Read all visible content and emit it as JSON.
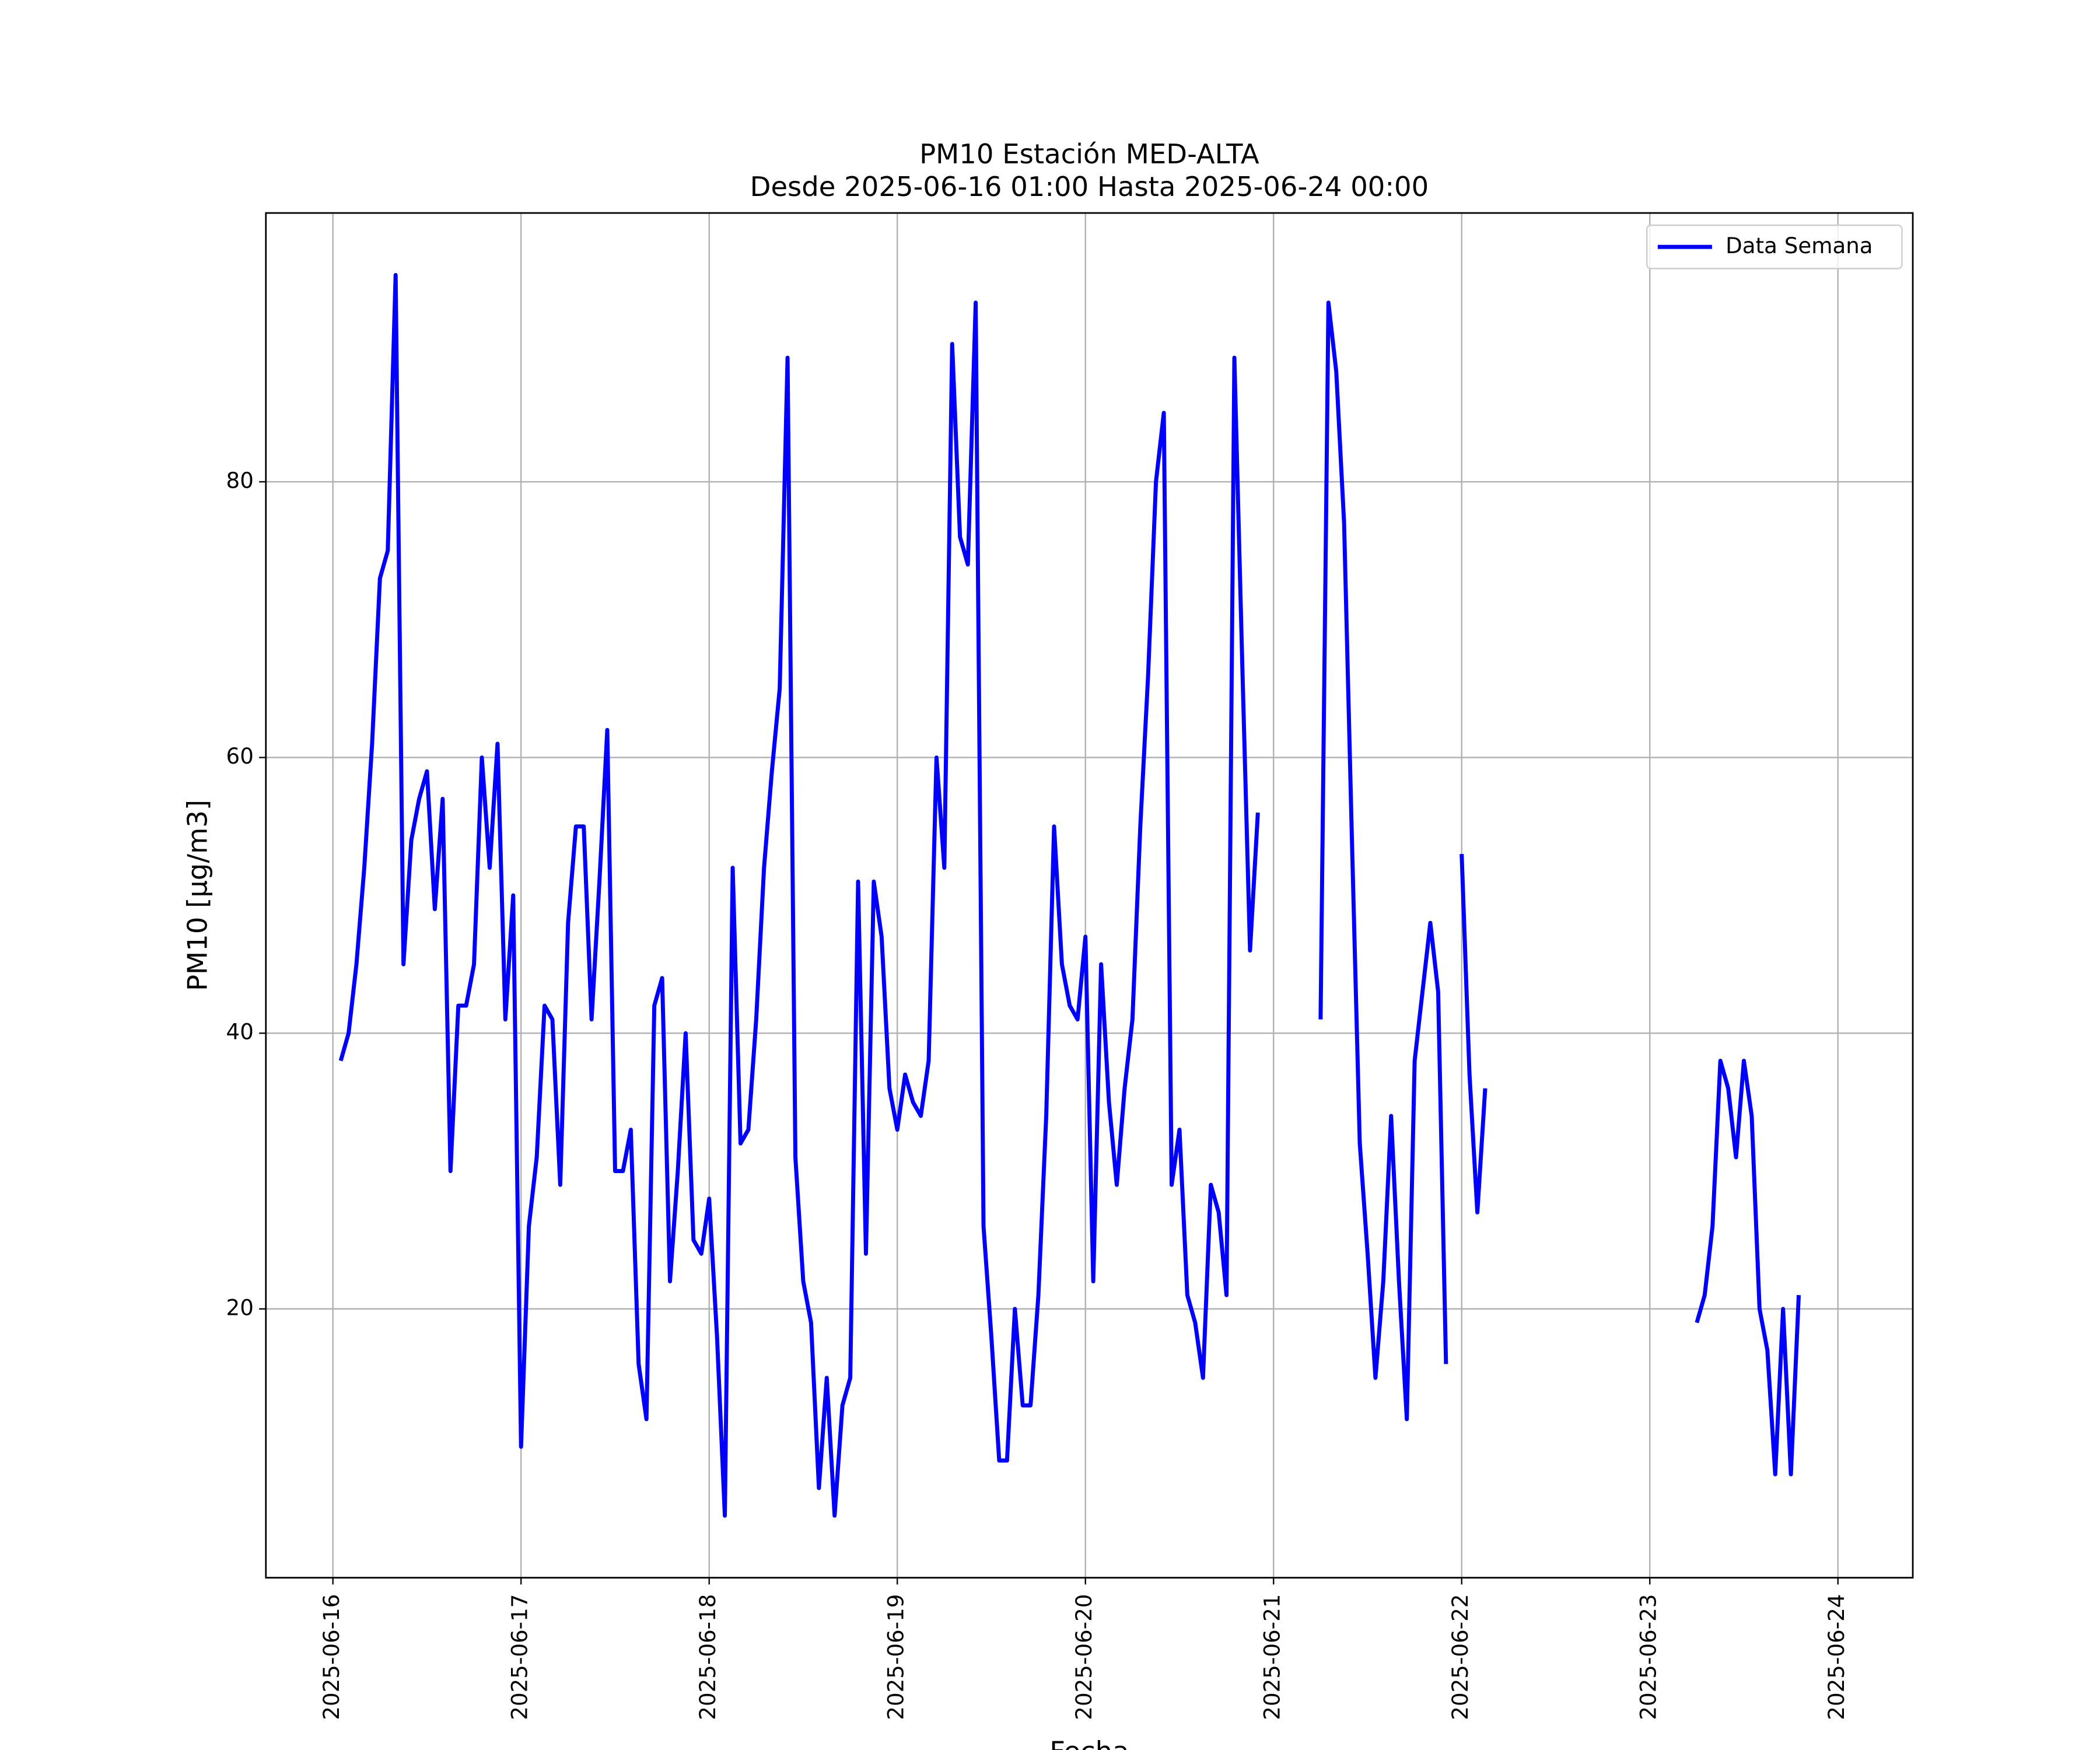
{
  "chart_data": {
    "type": "line",
    "title": "PM10 Estación MED-ALTA",
    "subtitle": "Desde 2025-06-16 01:00 Hasta 2025-06-24 00:00",
    "xlabel": "Fecha",
    "ylabel": "PM10 [μg/m3]",
    "x": [
      "2025-06-16 01:00",
      "2025-06-16 02:00",
      "2025-06-16 03:00",
      "2025-06-16 04:00",
      "2025-06-16 05:00",
      "2025-06-16 06:00",
      "2025-06-16 07:00",
      "2025-06-16 08:00",
      "2025-06-16 09:00",
      "2025-06-16 10:00",
      "2025-06-16 11:00",
      "2025-06-16 12:00",
      "2025-06-16 13:00",
      "2025-06-16 14:00",
      "2025-06-16 15:00",
      "2025-06-16 16:00",
      "2025-06-16 17:00",
      "2025-06-16 18:00",
      "2025-06-16 19:00",
      "2025-06-16 20:00",
      "2025-06-16 21:00",
      "2025-06-16 22:00",
      "2025-06-16 23:00",
      "2025-06-17 00:00",
      "2025-06-17 01:00",
      "2025-06-17 02:00",
      "2025-06-17 03:00",
      "2025-06-17 04:00",
      "2025-06-17 05:00",
      "2025-06-17 06:00",
      "2025-06-17 07:00",
      "2025-06-17 08:00",
      "2025-06-17 09:00",
      "2025-06-17 10:00",
      "2025-06-17 11:00",
      "2025-06-17 12:00",
      "2025-06-17 13:00",
      "2025-06-17 14:00",
      "2025-06-17 15:00",
      "2025-06-17 16:00",
      "2025-06-17 17:00",
      "2025-06-17 18:00",
      "2025-06-17 19:00",
      "2025-06-17 20:00",
      "2025-06-17 21:00",
      "2025-06-17 22:00",
      "2025-06-17 23:00",
      "2025-06-18 00:00",
      "2025-06-18 01:00",
      "2025-06-18 02:00",
      "2025-06-18 03:00",
      "2025-06-18 04:00",
      "2025-06-18 05:00",
      "2025-06-18 06:00",
      "2025-06-18 07:00",
      "2025-06-18 08:00",
      "2025-06-18 09:00",
      "2025-06-18 10:00",
      "2025-06-18 11:00",
      "2025-06-18 12:00",
      "2025-06-18 13:00",
      "2025-06-18 14:00",
      "2025-06-18 15:00",
      "2025-06-18 16:00",
      "2025-06-18 17:00",
      "2025-06-18 18:00",
      "2025-06-18 19:00",
      "2025-06-18 20:00",
      "2025-06-18 21:00",
      "2025-06-18 22:00",
      "2025-06-18 23:00",
      "2025-06-19 00:00",
      "2025-06-19 01:00",
      "2025-06-19 02:00",
      "2025-06-19 03:00",
      "2025-06-19 04:00",
      "2025-06-19 05:00",
      "2025-06-19 06:00",
      "2025-06-19 07:00",
      "2025-06-19 08:00",
      "2025-06-19 09:00",
      "2025-06-19 10:00",
      "2025-06-19 11:00",
      "2025-06-19 12:00",
      "2025-06-19 13:00",
      "2025-06-19 14:00",
      "2025-06-19 15:00",
      "2025-06-19 16:00",
      "2025-06-19 17:00",
      "2025-06-19 18:00",
      "2025-06-19 19:00",
      "2025-06-19 20:00",
      "2025-06-19 21:00",
      "2025-06-19 22:00",
      "2025-06-19 23:00",
      "2025-06-20 00:00",
      "2025-06-20 01:00",
      "2025-06-20 02:00",
      "2025-06-20 03:00",
      "2025-06-20 04:00",
      "2025-06-20 05:00",
      "2025-06-20 06:00",
      "2025-06-20 07:00",
      "2025-06-20 08:00",
      "2025-06-20 09:00",
      "2025-06-20 10:00",
      "2025-06-20 11:00",
      "2025-06-20 12:00",
      "2025-06-20 13:00",
      "2025-06-20 14:00",
      "2025-06-20 15:00",
      "2025-06-20 16:00",
      "2025-06-20 17:00",
      "2025-06-20 18:00",
      "2025-06-20 19:00",
      "2025-06-20 20:00",
      "2025-06-20 21:00",
      "2025-06-20 22:00",
      "2025-06-20 23:00",
      "2025-06-21 00:00",
      "2025-06-21 01:00",
      "2025-06-21 02:00",
      "2025-06-21 03:00",
      "2025-06-21 04:00",
      "2025-06-21 05:00",
      "2025-06-21 06:00",
      "2025-06-21 07:00",
      "2025-06-21 08:00",
      "2025-06-21 09:00",
      "2025-06-21 10:00",
      "2025-06-21 11:00",
      "2025-06-21 12:00",
      "2025-06-21 13:00",
      "2025-06-21 14:00",
      "2025-06-21 15:00",
      "2025-06-21 16:00",
      "2025-06-21 17:00",
      "2025-06-21 18:00",
      "2025-06-21 19:00",
      "2025-06-21 20:00",
      "2025-06-21 21:00",
      "2025-06-21 22:00",
      "2025-06-21 23:00",
      "2025-06-22 00:00",
      "2025-06-22 01:00",
      "2025-06-22 02:00",
      "2025-06-22 03:00",
      "2025-06-22 04:00",
      "2025-06-22 05:00",
      "2025-06-22 06:00",
      "2025-06-22 07:00",
      "2025-06-22 08:00",
      "2025-06-22 09:00",
      "2025-06-22 10:00",
      "2025-06-22 11:00",
      "2025-06-22 12:00",
      "2025-06-22 13:00",
      "2025-06-22 14:00",
      "2025-06-22 15:00",
      "2025-06-22 16:00",
      "2025-06-22 17:00",
      "2025-06-22 18:00",
      "2025-06-22 19:00",
      "2025-06-22 20:00",
      "2025-06-22 21:00",
      "2025-06-22 22:00",
      "2025-06-22 23:00",
      "2025-06-23 00:00",
      "2025-06-23 01:00",
      "2025-06-23 02:00",
      "2025-06-23 03:00",
      "2025-06-23 04:00",
      "2025-06-23 05:00",
      "2025-06-23 06:00",
      "2025-06-23 07:00",
      "2025-06-23 08:00",
      "2025-06-23 09:00",
      "2025-06-23 10:00",
      "2025-06-23 11:00",
      "2025-06-23 12:00",
      "2025-06-23 13:00",
      "2025-06-23 14:00",
      "2025-06-23 15:00",
      "2025-06-23 16:00",
      "2025-06-23 17:00",
      "2025-06-23 18:00",
      "2025-06-23 19:00"
    ],
    "series": [
      {
        "name": "Data Semana",
        "color": "#0000ff",
        "values": [
          38,
          40,
          45,
          52,
          61,
          73,
          75,
          95,
          45,
          54,
          57,
          59,
          49,
          57,
          30,
          42,
          42,
          45,
          60,
          52,
          61,
          41,
          50,
          10,
          26,
          31,
          42,
          41,
          29,
          48,
          55,
          55,
          41,
          51,
          62,
          30,
          30,
          33,
          16,
          12,
          42,
          44,
          22,
          30,
          40,
          25,
          24,
          28,
          18,
          5,
          52,
          32,
          33,
          41,
          52,
          59,
          65,
          89,
          31,
          22,
          19,
          7,
          15,
          5,
          13,
          15,
          51,
          24,
          51,
          47,
          36,
          33,
          37,
          35,
          34,
          38,
          60,
          52,
          90,
          76,
          74,
          93,
          26,
          18,
          9,
          9,
          20,
          13,
          13,
          21,
          34,
          55,
          45,
          42,
          41,
          47,
          22,
          45,
          35,
          29,
          36,
          41,
          55,
          66,
          80,
          85,
          29,
          33,
          21,
          19,
          15,
          29,
          27,
          21,
          89,
          67,
          46,
          56,
          null,
          null,
          null,
          null,
          null,
          null,
          null,
          41,
          93,
          88,
          77,
          54,
          32,
          24,
          15,
          22,
          34,
          22,
          12,
          38,
          43,
          48,
          43,
          16,
          null,
          53,
          37,
          27,
          36,
          null,
          null,
          null,
          null,
          null,
          null,
          null,
          null,
          null,
          null,
          null,
          null,
          null,
          null,
          null,
          null,
          null,
          null,
          null,
          null,
          null,
          null,
          null,
          null,
          null,
          null,
          19,
          21,
          26,
          38,
          36,
          31,
          38,
          34,
          20,
          17,
          8,
          20,
          8,
          21
        ]
      }
    ],
    "xlim": [
      "2025-06-15 15:27",
      "2025-06-24 09:33"
    ],
    "xticks": [
      "2025-06-16",
      "2025-06-17",
      "2025-06-18",
      "2025-06-19",
      "2025-06-20",
      "2025-06-21",
      "2025-06-22",
      "2025-06-23",
      "2025-06-24"
    ],
    "ylim": [
      0.5,
      99.5
    ],
    "yticks": [
      20,
      40,
      60,
      80
    ],
    "grid": true,
    "legend": "upper right"
  }
}
